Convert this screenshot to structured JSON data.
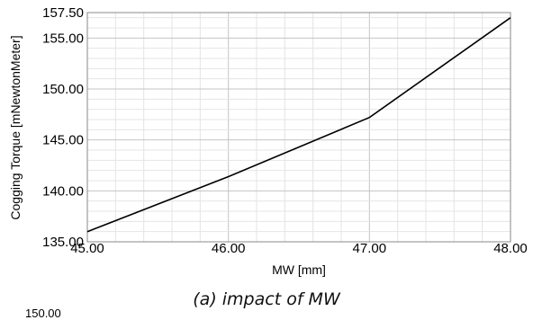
{
  "chart_data": {
    "type": "line",
    "xlabel": "MW [mm]",
    "ylabel": "Cogging Torque [mNewtonMeter]",
    "xlim": [
      45.0,
      48.0
    ],
    "ylim": [
      135.0,
      157.5
    ],
    "x_ticks": [
      "45.00",
      "46.00",
      "47.00",
      "48.00"
    ],
    "y_ticks": [
      "135.00",
      "140.00",
      "145.00",
      "150.00",
      "155.00",
      "157.50"
    ],
    "grid": true,
    "series": [
      {
        "x": [
          45.0,
          46.0,
          47.0,
          48.0
        ],
        "y": [
          136.0,
          141.4,
          147.2,
          157.0
        ],
        "color": "#000000"
      }
    ]
  },
  "caption": "(a) impact of MW",
  "cut_off_tick": "150.00"
}
